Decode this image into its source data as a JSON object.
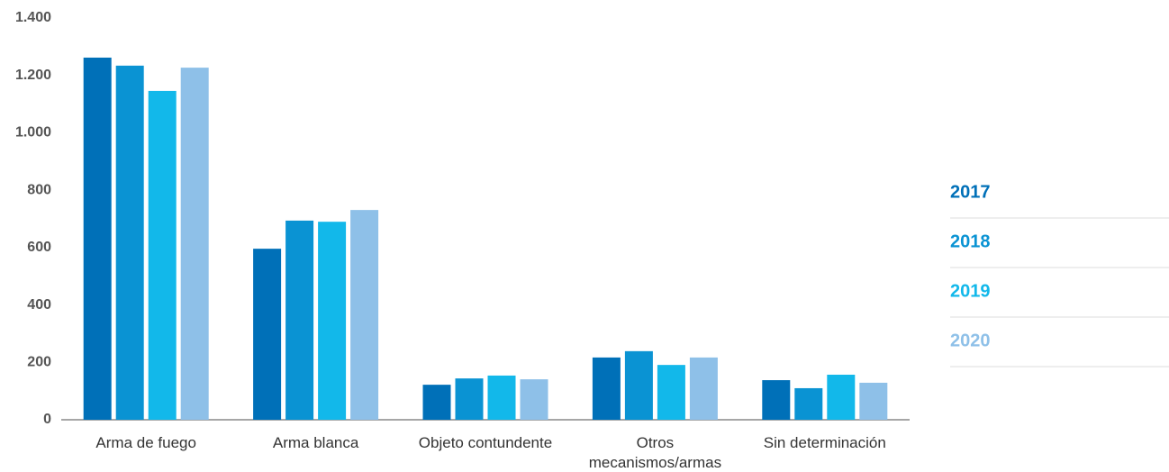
{
  "chart_data": {
    "type": "bar",
    "categories": [
      "Arma de fuego",
      "Arma blanca",
      "Objeto contundente",
      "Otros mecanismos/armas",
      "Sin determinación"
    ],
    "series": [
      {
        "name": "2017",
        "color": "#0070b8",
        "values": [
          1262,
          596,
          122,
          217,
          138
        ]
      },
      {
        "name": "2018",
        "color": "#0a93d3",
        "values": [
          1234,
          694,
          144,
          239,
          110
        ]
      },
      {
        "name": "2019",
        "color": "#12b8ea",
        "values": [
          1146,
          690,
          154,
          191,
          157
        ]
      },
      {
        "name": "2020",
        "color": "#8ec0e8",
        "values": [
          1227,
          731,
          141,
          217,
          129
        ]
      }
    ],
    "ylim": [
      0,
      1400
    ],
    "yticks": [
      0,
      200,
      400,
      600,
      800,
      {
        "value": 1000,
        "label": "1.000"
      },
      {
        "value": 1200,
        "label": "1.200"
      },
      {
        "value": 1400,
        "label": "1.400"
      }
    ],
    "grid": false,
    "legend": "right"
  }
}
